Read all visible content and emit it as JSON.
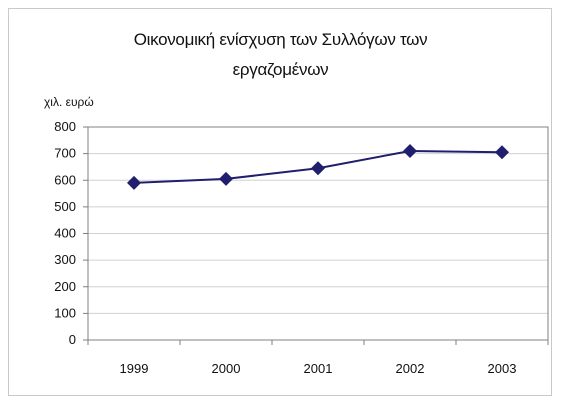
{
  "colors": {
    "series": "#1f1f6e",
    "gridline": "#d0d0d0",
    "axis": "#7f7f7f",
    "plot_border": "#808080"
  },
  "chart_data": {
    "type": "line",
    "title_line1": "Οικονομική ενίσχυση των Συλλόγων των",
    "title_line2": "εργαζομένων",
    "ylabel": "χιλ. ευρώ",
    "xlabel": "",
    "categories": [
      "1999",
      "2000",
      "2001",
      "2002",
      "2003"
    ],
    "series": [
      {
        "values": [
          590,
          605,
          645,
          710,
          705
        ]
      }
    ],
    "ylim": [
      0,
      800
    ],
    "yticks": [
      0,
      100,
      200,
      300,
      400,
      500,
      600,
      700,
      800
    ],
    "grid": true,
    "legend": "none"
  }
}
